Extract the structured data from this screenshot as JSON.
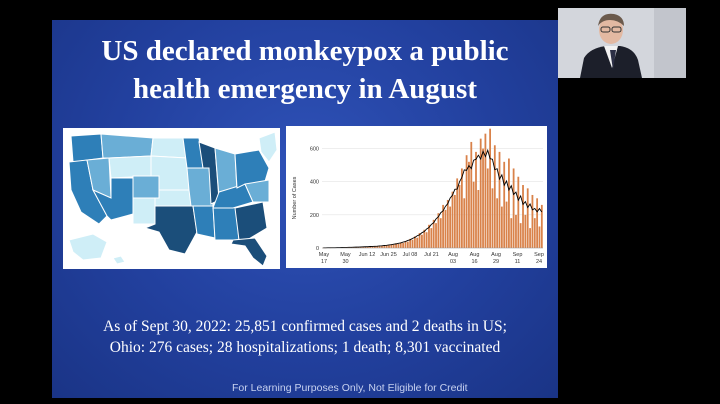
{
  "slide": {
    "title_line1": "US declared monkeypox a public",
    "title_line2": "health emergency in August",
    "caption_line1": "As of Sept 30, 2022: 25,851 confirmed cases and 2 deaths in US;",
    "caption_line2": "Ohio:  276 cases; 28 hospitalizations; 1 death; 8,301 vaccinated",
    "disclaimer": "For Learning Purposes Only, Not Eligible for Credit"
  },
  "map": {
    "colors": {
      "light": "#cfeef7",
      "mid": "#6aaed6",
      "dark": "#2e7fb8",
      "darkest": "#1b4e7a"
    }
  },
  "chart_data": {
    "type": "bar",
    "ylabel": "Number of Cases",
    "ylim": [
      0,
      700
    ],
    "yticks": [
      "0",
      "200",
      "400",
      "600"
    ],
    "xticks": [
      {
        "l1": "May",
        "l2": "17"
      },
      {
        "l1": "May",
        "l2": "30"
      },
      {
        "l1": "Jun 12",
        "l2": ""
      },
      {
        "l1": "Jun 25",
        "l2": ""
      },
      {
        "l1": "Jul 08",
        "l2": ""
      },
      {
        "l1": "Jul 21",
        "l2": ""
      },
      {
        "l1": "Aug",
        "l2": "03"
      },
      {
        "l1": "Aug",
        "l2": "16"
      },
      {
        "l1": "Aug",
        "l2": "29"
      },
      {
        "l1": "Sep",
        "l2": "11"
      },
      {
        "l1": "Sep",
        "l2": "24"
      }
    ],
    "bar_color": "#d9824a",
    "trend_color": "#000000",
    "values": [
      1,
      1,
      2,
      1,
      2,
      3,
      2,
      2,
      3,
      4,
      3,
      4,
      5,
      4,
      6,
      5,
      6,
      7,
      8,
      9,
      8,
      10,
      9,
      12,
      11,
      14,
      13,
      18,
      16,
      22,
      20,
      28,
      24,
      34,
      30,
      42,
      38,
      55,
      50,
      70,
      62,
      90,
      80,
      110,
      95,
      140,
      120,
      170,
      150,
      210,
      180,
      260,
      230,
      290,
      250,
      340,
      320,
      420,
      380,
      480,
      300,
      560,
      520,
      640,
      400,
      580,
      350,
      660,
      600,
      690,
      480,
      720,
      360,
      620,
      300,
      580,
      250,
      520,
      280,
      540,
      180,
      480,
      200,
      430,
      150,
      380,
      200,
      360,
      120,
      320,
      180,
      300,
      130,
      260
    ]
  },
  "webcam": {
    "alt": ""
  }
}
